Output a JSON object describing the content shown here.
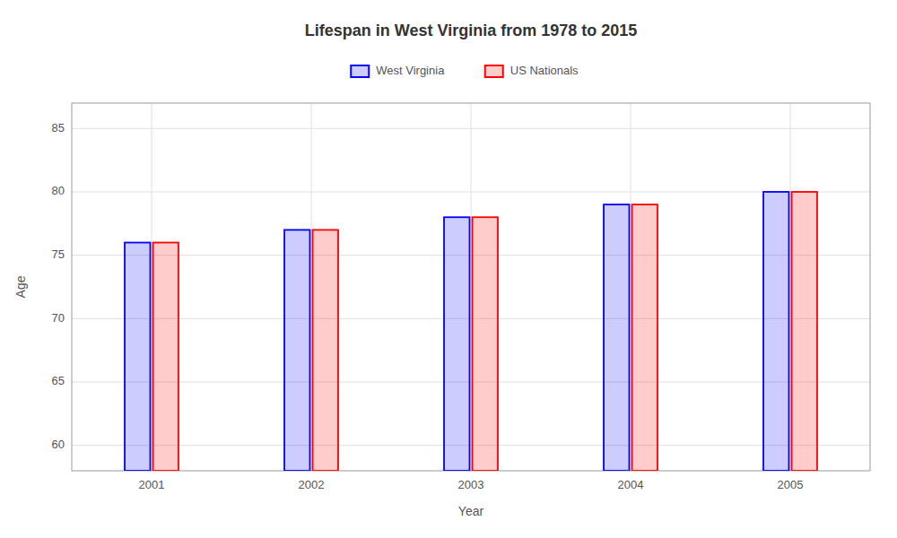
{
  "chart_data": {
    "type": "bar",
    "title": "Lifespan in West Virginia from 1978 to 2015",
    "x_label": "Year",
    "y_label": "Age",
    "categories": [
      "2001",
      "2002",
      "2003",
      "2004",
      "2005"
    ],
    "series": [
      {
        "name": "West Virginia",
        "color": "#0000ff",
        "values": [
          76,
          77,
          78,
          79,
          80
        ]
      },
      {
        "name": "US Nationals",
        "color": "#ff0000",
        "values": [
          76,
          77,
          78,
          79,
          80
        ]
      }
    ],
    "ylim": [
      58,
      87
    ],
    "yticks": [
      60,
      65,
      70,
      75,
      80,
      85
    ],
    "grid": true,
    "legend": "top"
  }
}
